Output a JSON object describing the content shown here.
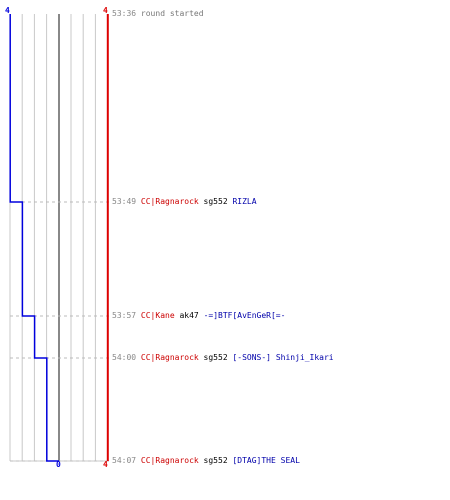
{
  "colors": {
    "red_team": "#dd0000",
    "blue_team": "#0000dd",
    "grid": "#c8c8c8",
    "center_line": "#888888",
    "dash": "#bbbbbb",
    "time": "#888888",
    "killer": "#cc0000",
    "victim": "#0000aa"
  },
  "score_axis": {
    "left_top_label": "4",
    "right_top_label": "4",
    "bottom_center_label": "0",
    "bottom_right_label": "4"
  },
  "events": [
    {
      "time": "53:36",
      "text": "round started",
      "killer": "",
      "weapon": "",
      "victim": "",
      "blue_score": 4,
      "red_score": 4
    },
    {
      "time": "53:49",
      "text": "",
      "killer": "CC|Ragnarock",
      "weapon": "sg552",
      "victim": "RIZLA",
      "blue_score": 3,
      "red_score": 4
    },
    {
      "time": "53:57",
      "text": "",
      "killer": "CC|Kane",
      "weapon": "ak47",
      "victim": "-=]BTF[AvEnGeR[=-",
      "blue_score": 2,
      "red_score": 4
    },
    {
      "time": "54:00",
      "text": "",
      "killer": "CC|Ragnarock",
      "weapon": "sg552",
      "victim": "[-SONS-] Shinji_Ikari",
      "blue_score": 1,
      "red_score": 4
    },
    {
      "time": "54:07",
      "text": "",
      "killer": "CC|Ragnarock",
      "weapon": "sg552",
      "victim": "[DTAG]THE SEAL",
      "blue_score": 0,
      "red_score": 4
    }
  ]
}
